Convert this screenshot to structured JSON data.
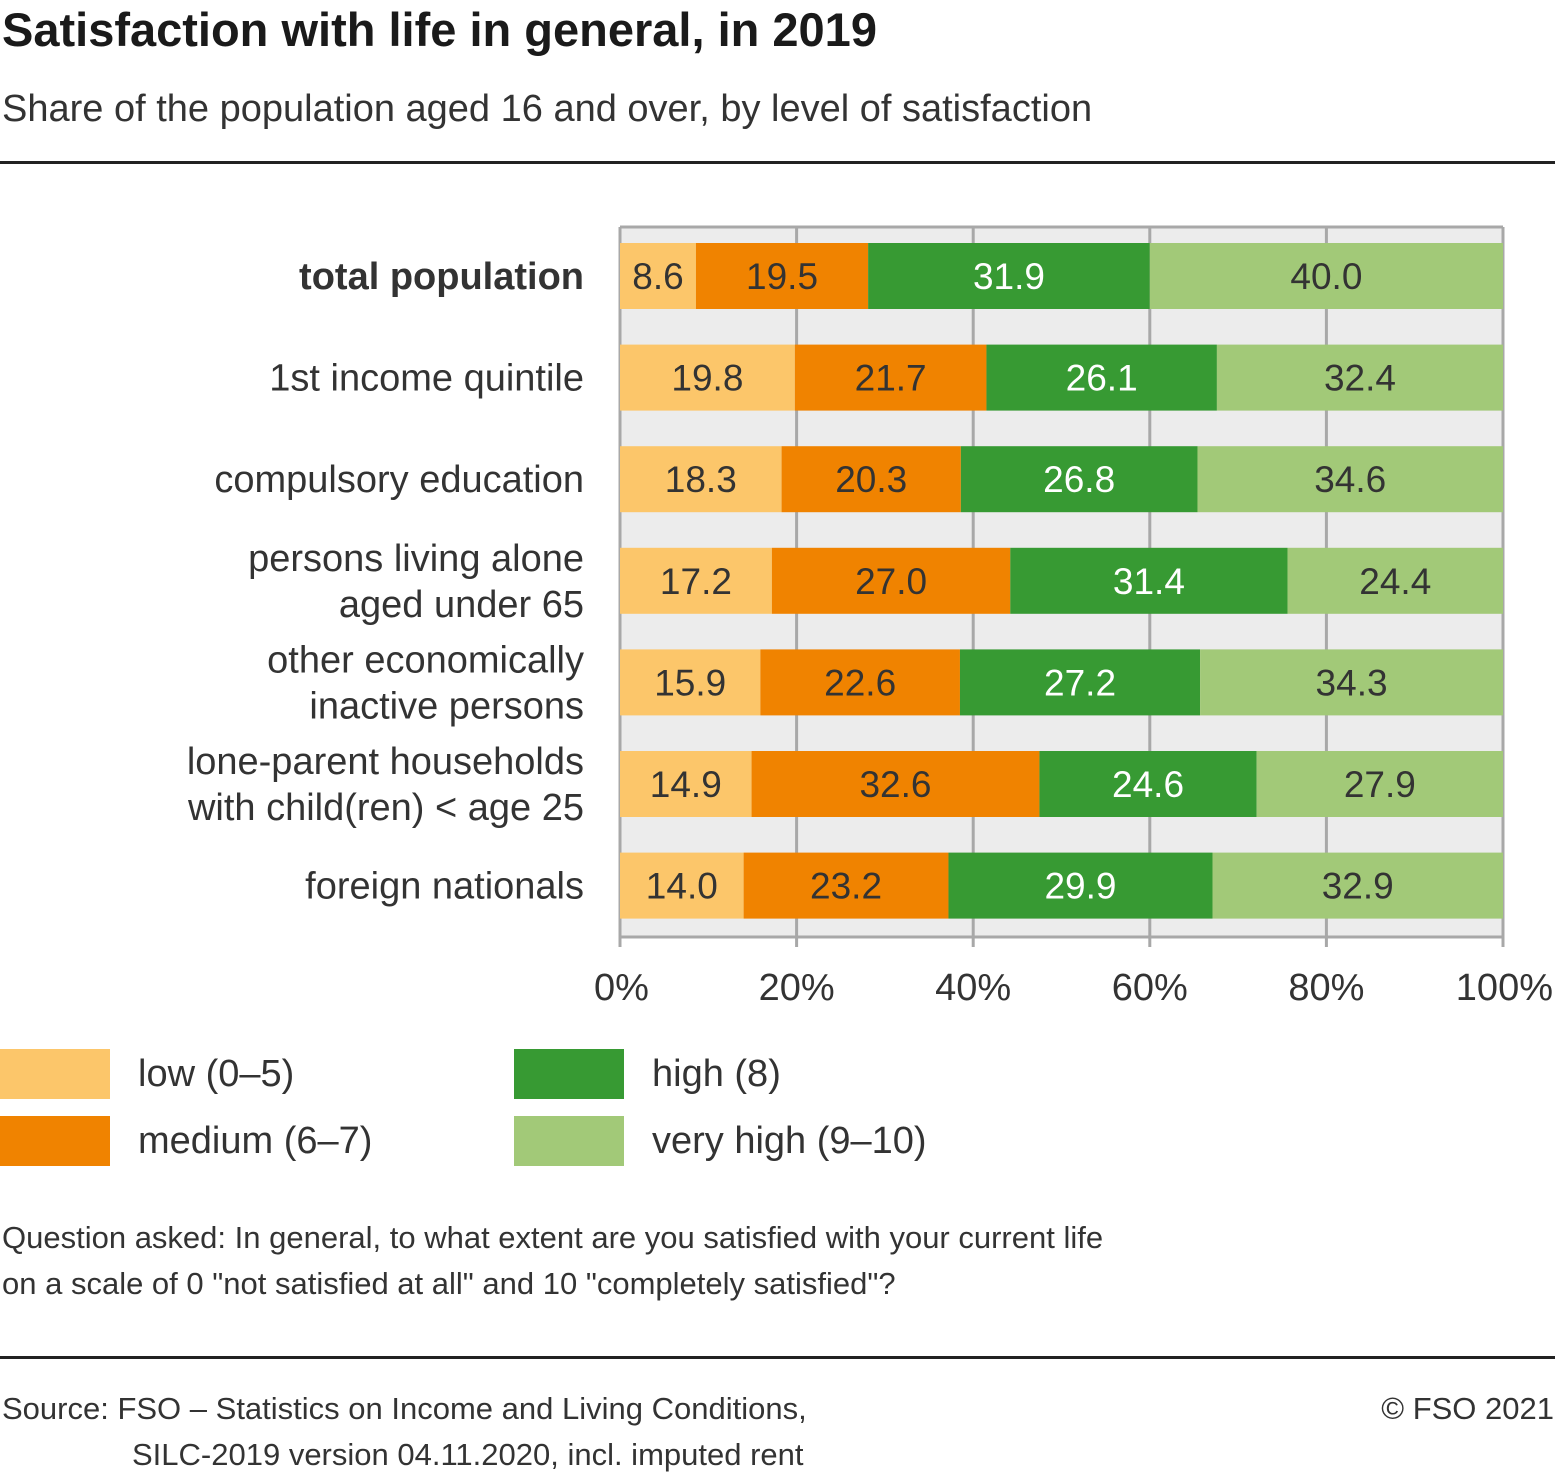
{
  "title": "Satisfaction with life in general, in 2019",
  "subtitle": "Share of the population aged 16 and over, by level of satisfaction",
  "note": {
    "line1": "Question asked: In general, to what extent are you satisfied with your current life",
    "line2": "on a scale of 0 \"not satisfied at all\" and 10 \"completely satisfied\"?"
  },
  "source": {
    "line1": "Source: FSO – Statistics on Income and Living Conditions,",
    "line2": "SILC-2019 version 04.11.2020, incl. imputed rent"
  },
  "copyright": "© FSO 2021",
  "legend": [
    {
      "label": "low (0–5)",
      "color": "#fcc66a"
    },
    {
      "label": "medium (6–7)",
      "color": "#f08300"
    },
    {
      "label": "high (8)",
      "color": "#379a33"
    },
    {
      "label": "very high (9–10)",
      "color": "#a2c978"
    }
  ],
  "chart_data": {
    "type": "bar",
    "orientation": "horizontal",
    "stacked": true,
    "categories": [
      "total population",
      "1st income quintile",
      "compulsory education",
      "persons living alone aged under 65",
      "other economically inactive persons",
      "lone-parent households with child(ren) < age 25",
      "foreign nationals"
    ],
    "category_lines": [
      [
        "total population"
      ],
      [
        "1st income quintile"
      ],
      [
        "compulsory education"
      ],
      [
        "persons living alone",
        "aged under 65"
      ],
      [
        "other economically",
        "inactive persons"
      ],
      [
        "lone-parent households",
        "with child(ren) < age 25"
      ],
      [
        "foreign nationals"
      ]
    ],
    "bold_categories": [
      "total population"
    ],
    "series": [
      {
        "name": "low (0–5)",
        "color": "#fcc66a",
        "label_color": "#333333",
        "values": [
          8.6,
          19.8,
          18.3,
          17.2,
          15.9,
          14.9,
          14.0
        ]
      },
      {
        "name": "medium (6–7)",
        "color": "#f08300",
        "label_color": "#333333",
        "values": [
          19.5,
          21.7,
          20.3,
          27.0,
          22.6,
          32.6,
          23.2
        ]
      },
      {
        "name": "high (8)",
        "color": "#379a33",
        "label_color": "#ffffff",
        "values": [
          31.9,
          26.1,
          26.8,
          31.4,
          27.2,
          24.6,
          29.9
        ]
      },
      {
        "name": "very high (9–10)",
        "color": "#a2c978",
        "label_color": "#333333",
        "values": [
          40.0,
          32.4,
          34.6,
          24.4,
          34.3,
          27.9,
          32.9
        ]
      }
    ],
    "xlim": [
      0,
      100
    ],
    "xticks": [
      0,
      20,
      40,
      60,
      80,
      100
    ],
    "xtick_labels": [
      "0%",
      "20%",
      "40%",
      "60%",
      "80%",
      "100%"
    ],
    "grid": true,
    "legend_position": "bottom"
  }
}
